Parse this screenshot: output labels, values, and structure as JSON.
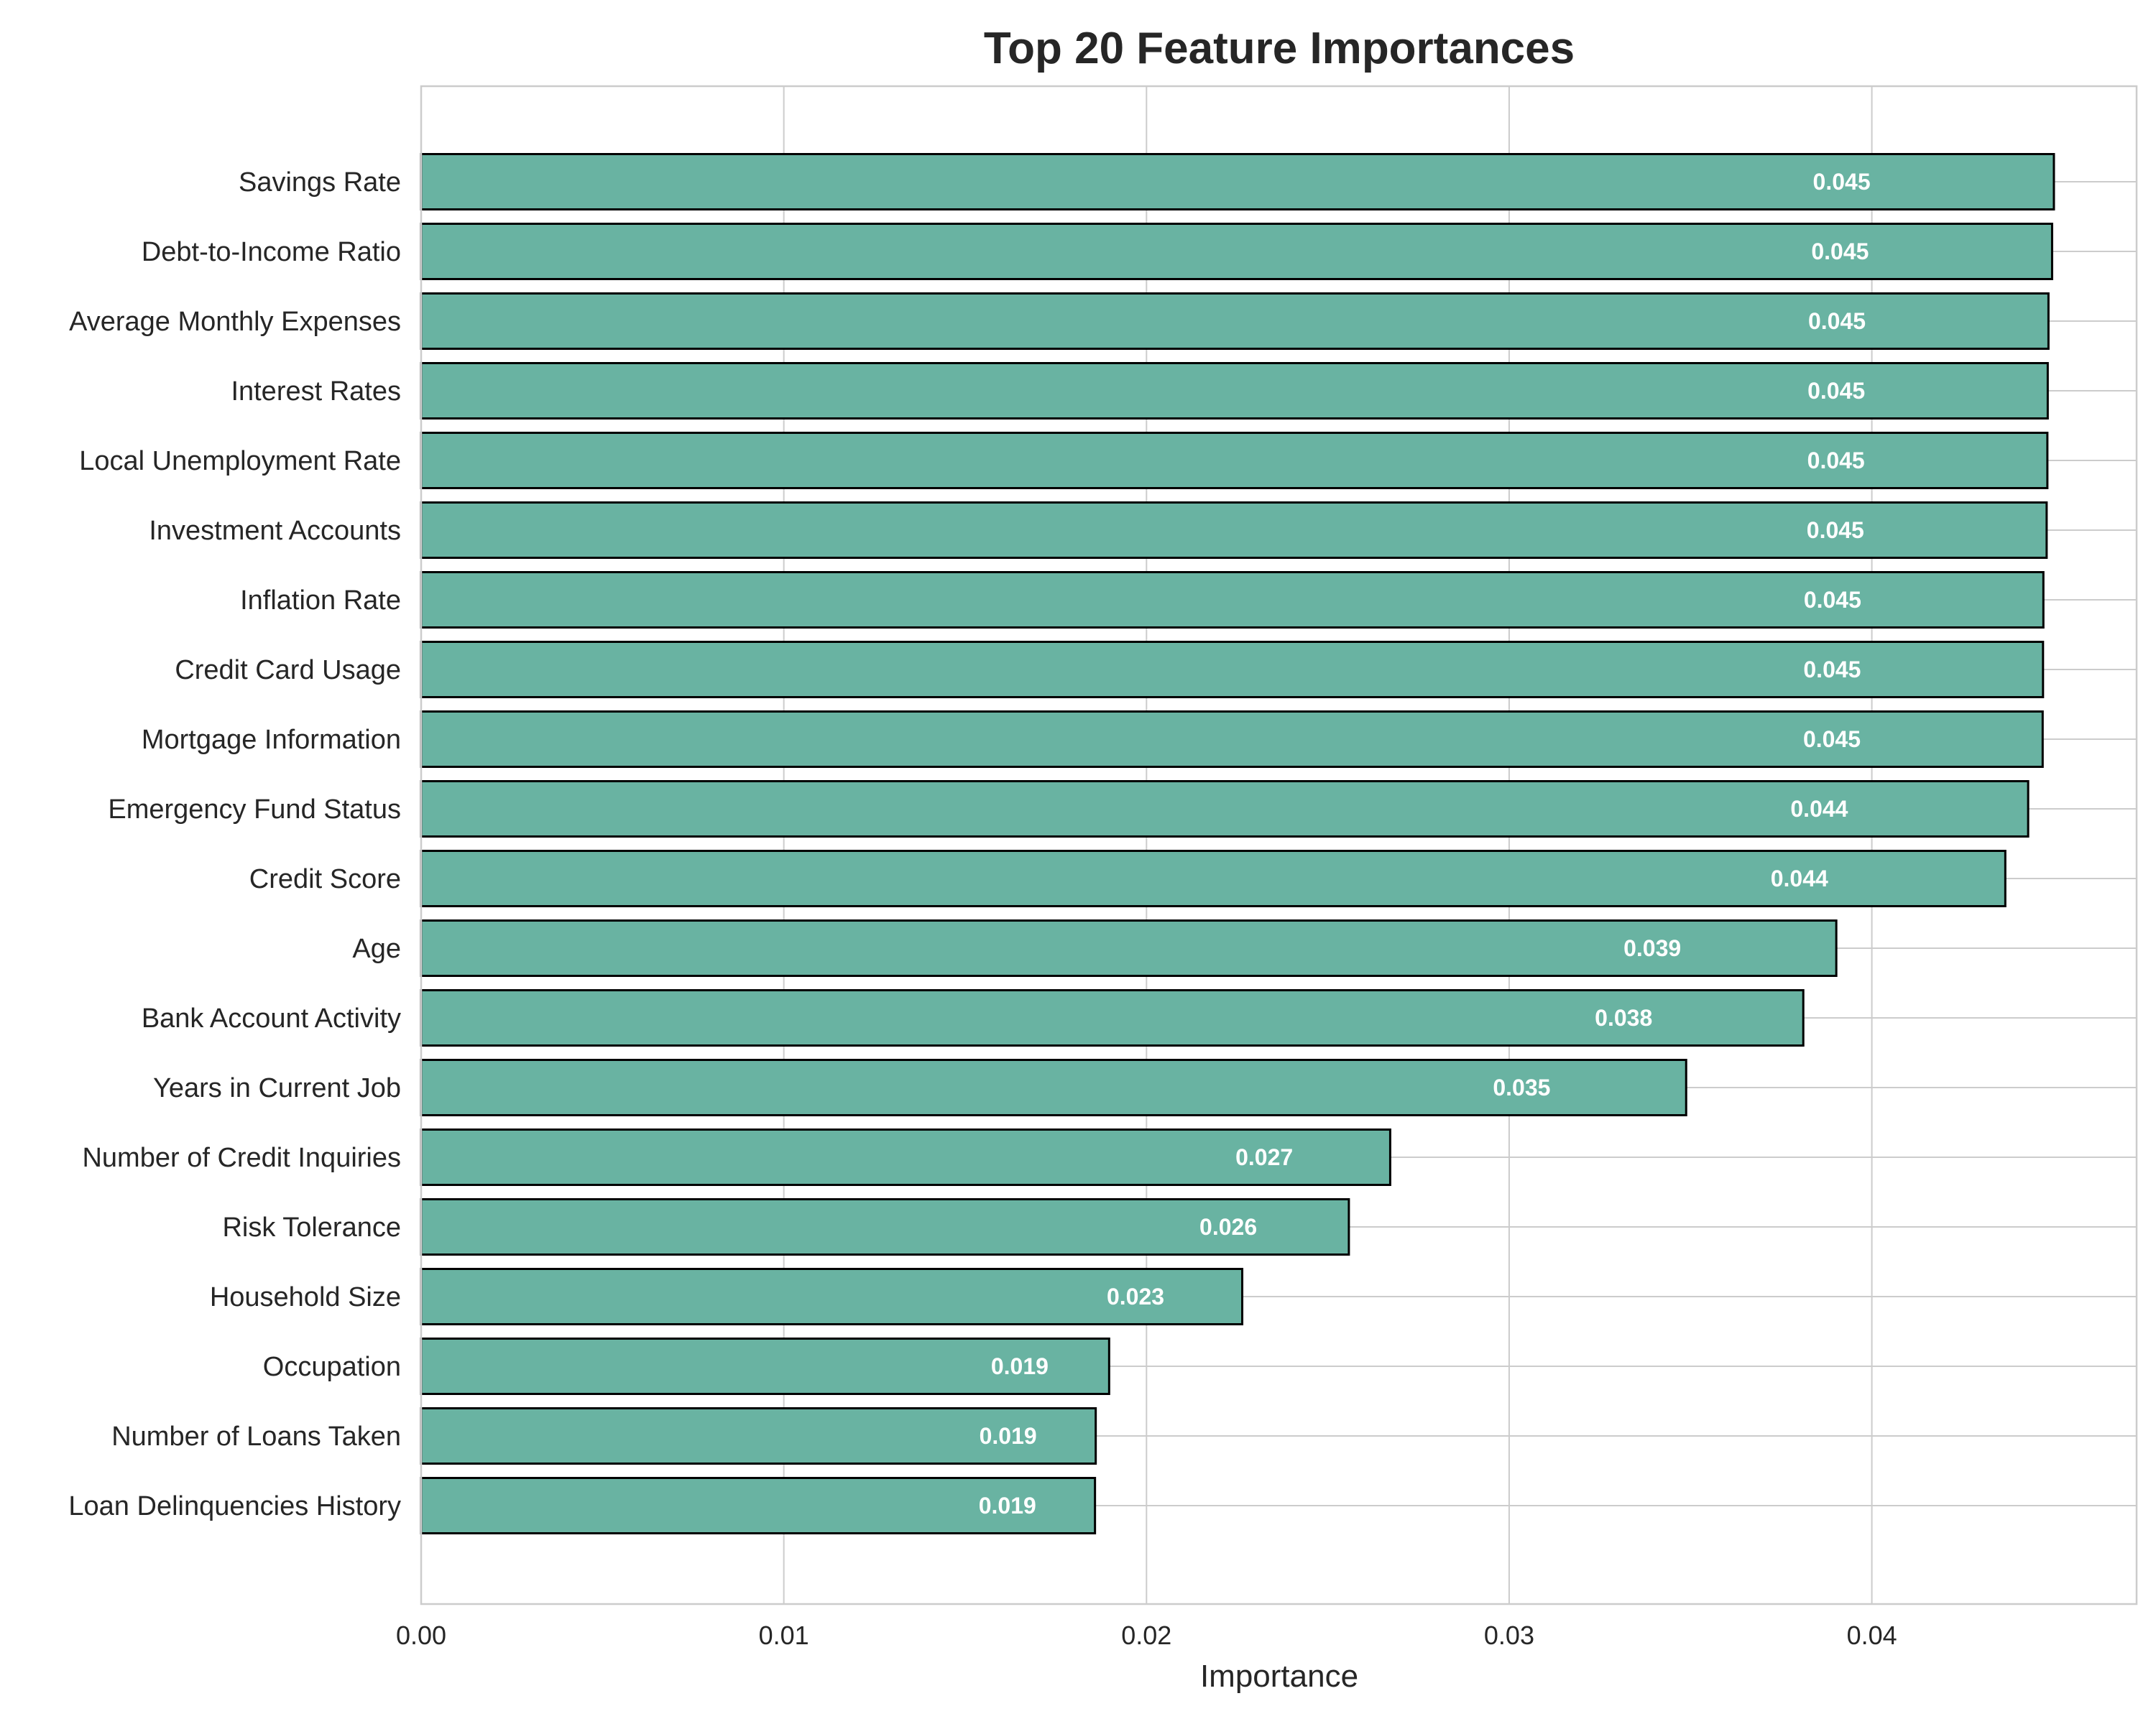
{
  "chart_data": {
    "type": "bar",
    "orientation": "horizontal",
    "title": "Top 20 Feature Importances",
    "xlabel": "Importance",
    "ylabel": "",
    "xlim": [
      0,
      0.0473
    ],
    "xticks": [
      0.0,
      0.01,
      0.02,
      0.03,
      0.04
    ],
    "xtick_labels": [
      "0.00",
      "0.01",
      "0.02",
      "0.03",
      "0.04"
    ],
    "grid": true,
    "bar_color": "#69b3a2",
    "bar_edge_color": "#000000",
    "data_label_color": "#ffffff",
    "categories": [
      "Savings Rate",
      "Debt-to-Income Ratio",
      "Average Monthly Expenses",
      "Interest Rates",
      "Local Unemployment Rate",
      "Investment Accounts",
      "Inflation Rate",
      "Credit Card Usage",
      "Mortgage Information",
      "Emergency Fund Status",
      "Credit Score",
      "Age",
      "Bank Account Activity",
      "Years in Current Job",
      "Number of Credit Inquiries",
      "Risk Tolerance",
      "Household Size",
      "Occupation",
      "Number of Loans Taken",
      "Loan Delinquencies History"
    ],
    "values": [
      0.04502,
      0.04497,
      0.04487,
      0.04485,
      0.04484,
      0.04482,
      0.04473,
      0.04472,
      0.04471,
      0.04431,
      0.04368,
      0.03902,
      0.03811,
      0.03488,
      0.02672,
      0.02558,
      0.02264,
      0.01897,
      0.0186,
      0.01858
    ],
    "data_labels": [
      "0.045",
      "0.045",
      "0.045",
      "0.045",
      "0.045",
      "0.045",
      "0.045",
      "0.045",
      "0.045",
      "0.044",
      "0.044",
      "0.039",
      "0.038",
      "0.035",
      "0.027",
      "0.026",
      "0.023",
      "0.019",
      "0.019",
      "0.019"
    ]
  }
}
